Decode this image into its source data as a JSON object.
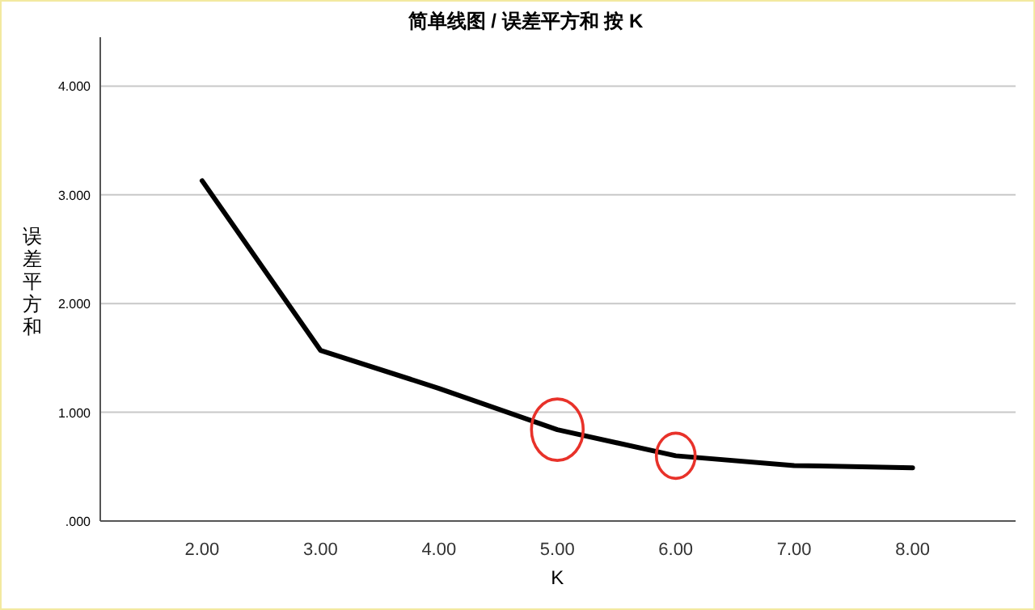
{
  "chart_data": {
    "type": "line",
    "title": "简单线图 / 误差平方和 按 K",
    "xlabel": "K",
    "ylabel": "误差平方和",
    "x": [
      2,
      3,
      4,
      5,
      6,
      7,
      8
    ],
    "series": [
      {
        "color": "#000000",
        "values": [
          3.13,
          1.57,
          1.22,
          0.84,
          0.6,
          0.51,
          0.49
        ]
      }
    ],
    "xlim": [
      1.14,
      8.87
    ],
    "xticks": [
      {
        "value": 2,
        "label": "2.00"
      },
      {
        "value": 3,
        "label": "3.00"
      },
      {
        "value": 4,
        "label": "4.00"
      },
      {
        "value": 5,
        "label": "5.00"
      },
      {
        "value": 6,
        "label": "6.00"
      },
      {
        "value": 7,
        "label": "7.00"
      },
      {
        "value": 8,
        "label": "8.00"
      }
    ],
    "ylim": [
      0,
      4.45
    ],
    "yticks": [
      {
        "value": 0,
        "label": ".000"
      },
      {
        "value": 1,
        "label": "1.000"
      },
      {
        "value": 2,
        "label": "2.000"
      },
      {
        "value": 3,
        "label": "3.000"
      },
      {
        "value": 4,
        "label": "4.000"
      }
    ],
    "grid": "y",
    "marker": "none",
    "line_style": "solid"
  }
}
